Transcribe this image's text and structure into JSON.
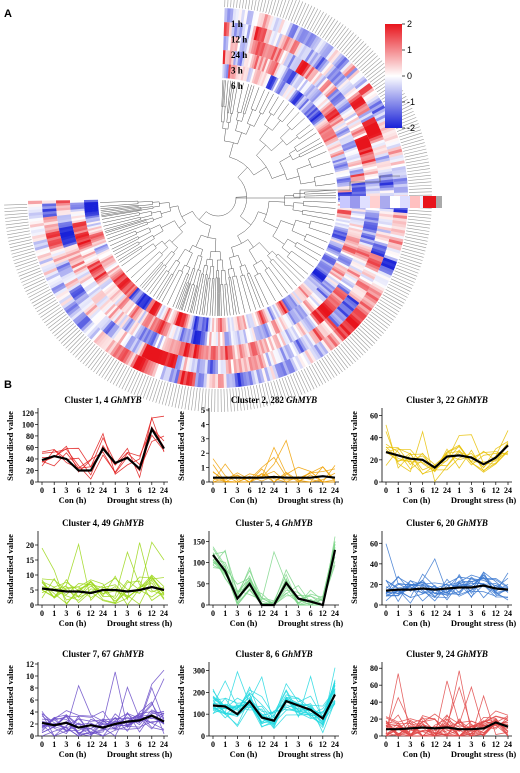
{
  "panel_a": {
    "letter": "A",
    "ring_labels": [
      "1 h",
      "12 h",
      "24 h",
      "3 h",
      "6 h"
    ],
    "colorbar": {
      "ticks": [
        "2",
        "1",
        "0",
        "-1",
        "-2"
      ],
      "colors": {
        "high": "#e8141c",
        "mid": "#ffffff",
        "low": "#1a22d8"
      }
    }
  },
  "panel_b": {
    "letter": "B",
    "ylabel": "Standardised value",
    "x_ticks": [
      "0",
      "1",
      "3",
      "6",
      "12",
      "24",
      "1",
      "3",
      "6",
      "12",
      "24"
    ],
    "group_labels": [
      "Con (h)",
      "Drought stress (h)"
    ]
  },
  "chart_data": [
    {
      "type": "heatmap",
      "title": "",
      "layout": "circular",
      "rows": [
        "1 h",
        "12 h",
        "24 h",
        "3 h",
        "6 h"
      ],
      "value_range": [
        -2,
        2
      ],
      "dendrogram": true
    },
    {
      "type": "line",
      "title": "Cluster 1, 4 GhMYB",
      "label_plain": "Cluster 1, 4 ",
      "label_italic": "GhMYB",
      "ylim": [
        0,
        125
      ],
      "yticks": [
        0,
        20,
        40,
        60,
        80,
        100,
        120
      ],
      "color": "#e01818",
      "mean": [
        38,
        45,
        40,
        20,
        20,
        58,
        33,
        42,
        23,
        92,
        58
      ]
    },
    {
      "type": "line",
      "title": "Cluster 2, 282 GhMYB",
      "label_plain": "Cluster 2, 282 ",
      "label_italic": "GhMYB",
      "ylim": [
        0,
        5
      ],
      "yticks": [
        0,
        1,
        2,
        3,
        4,
        5
      ],
      "color": "#f0a000",
      "mean": [
        0.3,
        0.3,
        0.3,
        0.3,
        0.3,
        0.35,
        0.3,
        0.3,
        0.3,
        0.4,
        0.3
      ]
    },
    {
      "type": "line",
      "title": "Cluster 3, 22 GhMYB",
      "label_plain": "Cluster 3, 22 ",
      "label_italic": "GhMYB",
      "ylim": [
        0,
        65
      ],
      "yticks": [
        0,
        20,
        40,
        60
      ],
      "color": "#e8c000",
      "mean": [
        27,
        24,
        21,
        20,
        13,
        23,
        24,
        22,
        16,
        22,
        33
      ]
    },
    {
      "type": "line",
      "title": "Cluster 4, 49 GhMYB",
      "label_plain": "Cluster 4, 49 ",
      "label_italic": "GhMYB",
      "ylim": [
        0,
        24
      ],
      "yticks": [
        0,
        5,
        10,
        15,
        20
      ],
      "color": "#9ad614",
      "mean": [
        5.5,
        5,
        4.5,
        4.5,
        4,
        5,
        5,
        4.5,
        5,
        6,
        5
      ]
    },
    {
      "type": "line",
      "title": "Cluster 5, 4 GhMYB",
      "label_plain": "Cluster 5, 4 ",
      "label_italic": "GhMYB",
      "ylim": [
        0,
        170
      ],
      "yticks": [
        0,
        50,
        100,
        150
      ],
      "color": "#7ed68a",
      "mean": [
        118,
        80,
        15,
        50,
        0,
        0,
        52,
        15,
        8,
        0,
        130
      ]
    },
    {
      "type": "line",
      "title": "Cluster 6, 20 GhMYB",
      "label_plain": "Cluster 6, 20 ",
      "label_italic": "GhMYB",
      "ylim": [
        0,
        70
      ],
      "yticks": [
        0,
        20,
        40,
        60
      ],
      "color": "#3a78d0",
      "mean": [
        14,
        15,
        15,
        16,
        15,
        16,
        17,
        17,
        19,
        16,
        15
      ]
    },
    {
      "type": "line",
      "title": "Cluster 7, 67 GhMYB",
      "label_plain": "Cluster 7, 67 ",
      "label_italic": "GhMYB",
      "ylim": [
        0,
        12
      ],
      "yticks": [
        0,
        2,
        4,
        6,
        8,
        10,
        12
      ],
      "color": "#6a4cc8",
      "mean": [
        2.2,
        1.8,
        2.2,
        1.4,
        1.8,
        1.4,
        2,
        2.4,
        2.6,
        3.4,
        2.4
      ]
    },
    {
      "type": "line",
      "title": "Cluster 8, 6 GhMYB",
      "label_plain": "Cluster 8, 6 ",
      "label_italic": "GhMYB",
      "ylim": [
        0,
        330
      ],
      "yticks": [
        0,
        100,
        200,
        300
      ],
      "color": "#22d8e0",
      "mean": [
        140,
        135,
        100,
        160,
        85,
        70,
        160,
        140,
        120,
        80,
        190
      ]
    },
    {
      "type": "line",
      "title": "Cluster 9, 24 GhMYB",
      "label_plain": "Cluster 9, 24 ",
      "label_italic": "GhMYB",
      "ylim": [
        0,
        85
      ],
      "yticks": [
        0,
        20,
        40,
        60,
        80
      ],
      "color": "#e04848",
      "mean": [
        8,
        8,
        9,
        10,
        9,
        10,
        8,
        8,
        9,
        16,
        11
      ]
    }
  ]
}
